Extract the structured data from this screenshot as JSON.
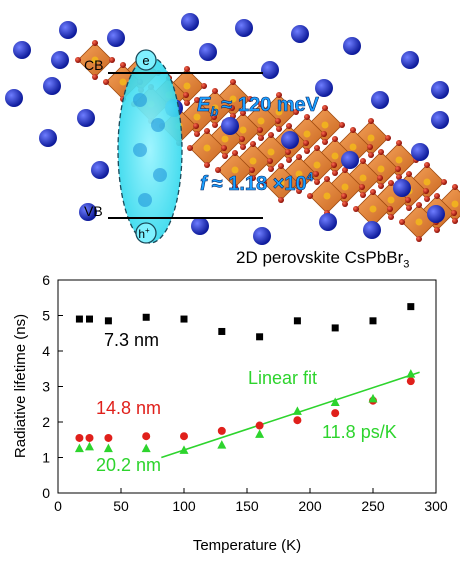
{
  "illustration": {
    "cb_label": "CB",
    "vb_label": "VB",
    "electron_symbol": "e",
    "hole_symbol": "h",
    "hole_superscript": "+",
    "eb_symbol": "E",
    "eb_subscript": "b",
    "eb_value": "≈ 120 meV",
    "f_symbol": "f",
    "f_value": "≈ 1.18 ×10",
    "f_exponent": "4",
    "colors": {
      "cs_atom": "#1a2fd0",
      "octahedron": "#e8893a",
      "br_atom": "#c01a10",
      "exciton": "#38e0f0",
      "annotation_text": "#1aa0ff"
    }
  },
  "header": {
    "title_main": "2D perovskite CsPbBr",
    "title_subscript": "3"
  },
  "chart_data": {
    "type": "scatter",
    "xlabel": "Temperature (K)",
    "ylabel": "Radiative lifetime (ns)",
    "xlim": [
      0,
      300
    ],
    "ylim": [
      0,
      6
    ],
    "xticks": [
      0,
      50,
      100,
      150,
      200,
      250,
      300
    ],
    "yticks": [
      0,
      1,
      2,
      3,
      4,
      5,
      6
    ],
    "series": [
      {
        "name": "7.3 nm",
        "color": "#000000",
        "marker": "square",
        "x": [
          17,
          25,
          40,
          70,
          100,
          130,
          160,
          190,
          220,
          250,
          280
        ],
        "y": [
          4.9,
          4.9,
          4.85,
          4.95,
          4.9,
          4.55,
          4.4,
          4.85,
          4.65,
          4.85,
          5.25
        ]
      },
      {
        "name": "14.8 nm",
        "color": "#e0201b",
        "marker": "circle",
        "x": [
          17,
          25,
          40,
          70,
          100,
          130,
          160,
          190,
          220,
          250,
          280
        ],
        "y": [
          1.55,
          1.55,
          1.55,
          1.6,
          1.6,
          1.75,
          1.9,
          2.05,
          2.25,
          2.6,
          3.15
        ]
      },
      {
        "name": "20.2 nm",
        "color": "#2dd42d",
        "marker": "triangle",
        "x": [
          17,
          25,
          40,
          70,
          100,
          130,
          160,
          190,
          220,
          250,
          280
        ],
        "y": [
          1.25,
          1.3,
          1.25,
          1.25,
          1.2,
          1.35,
          1.65,
          2.3,
          2.55,
          2.65,
          3.35
        ]
      }
    ],
    "fit_line": {
      "name": "Linear fit",
      "slope_label": "11.8 ps/K",
      "color": "#2dd42d",
      "x": [
        82,
        287
      ],
      "y": [
        1.0,
        3.4
      ]
    },
    "grid": false
  }
}
